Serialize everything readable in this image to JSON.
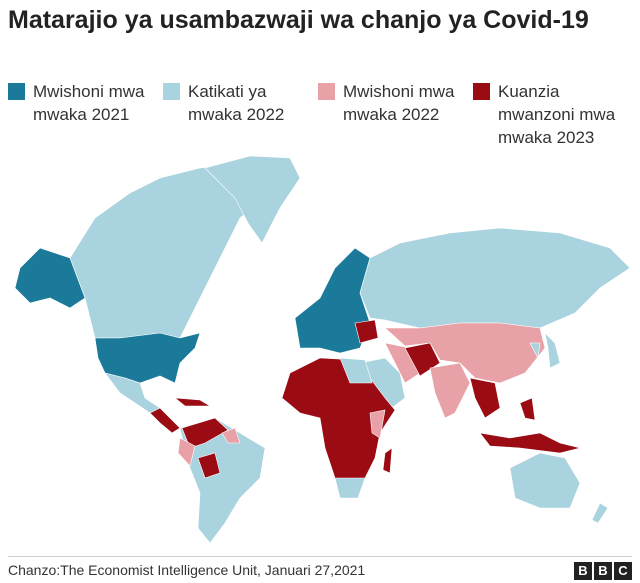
{
  "header": {
    "title": "Matarajio ya usambazwaji wa chanjo ya Covid-19"
  },
  "legend": [
    {
      "label": "Mwishoni mwa mwaka 2021",
      "color": "#1b7a99"
    },
    {
      "label": "Katikati ya mwaka 2022",
      "color": "#a9d3df"
    },
    {
      "label": "Mwishoni mwa mwaka 2022",
      "color": "#e8a2a7"
    },
    {
      "label": "Kuanzia mwanzoni mwa mwaka 2023",
      "color": "#9b0b13"
    }
  ],
  "footer": {
    "source": "Chanzo:The Economist Intelligence Unit, Januari 27,2021",
    "logo": [
      "B",
      "B",
      "C"
    ]
  }
}
